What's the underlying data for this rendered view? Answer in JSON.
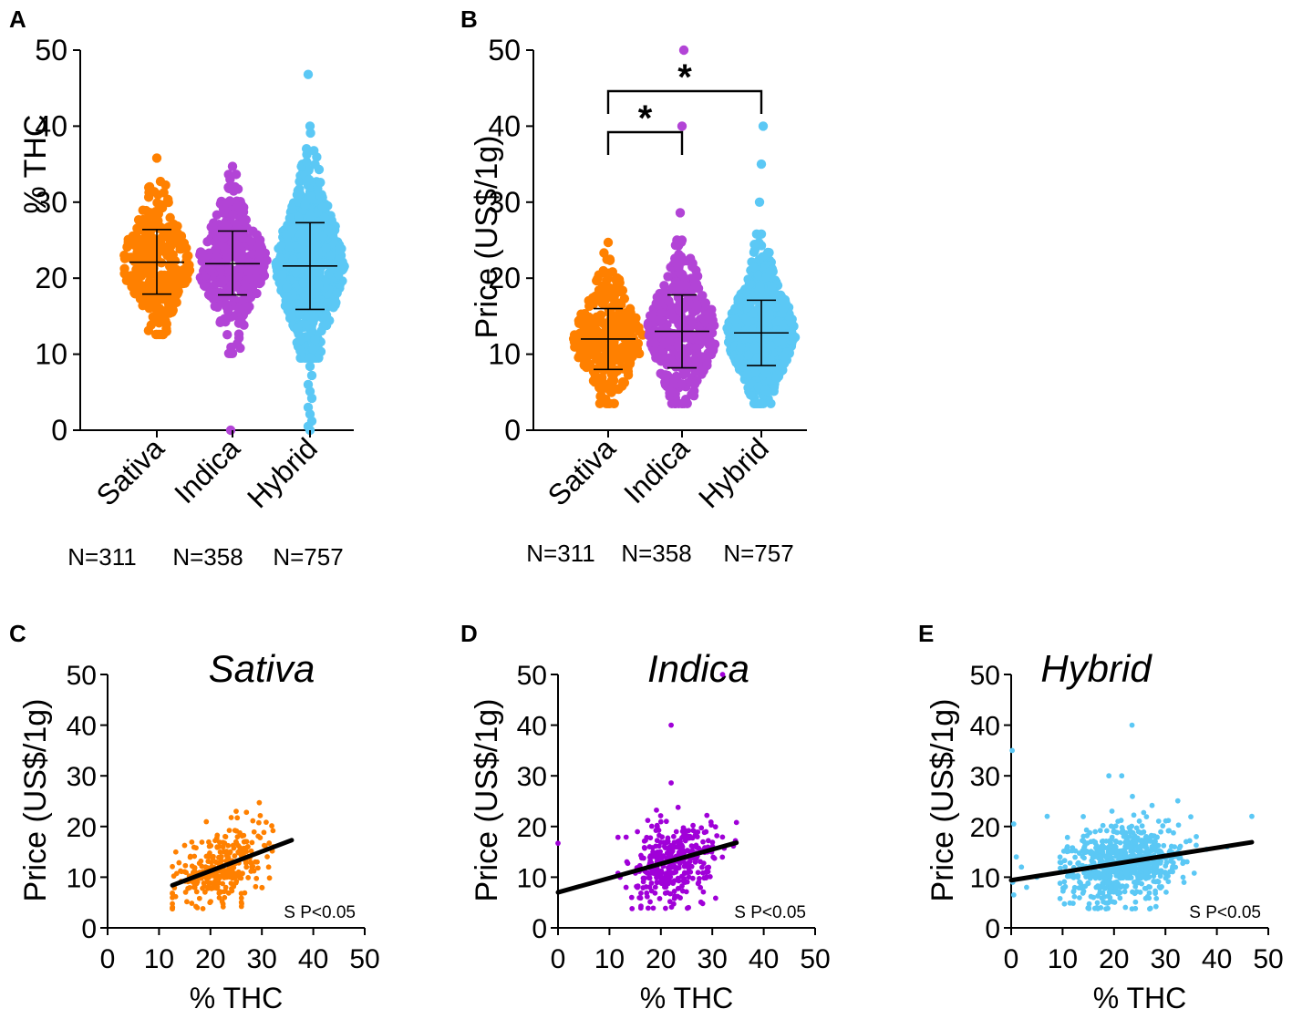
{
  "colors": {
    "Sativa": "#FF8000",
    "Indica": "#B244D6",
    "Hybrid": "#5BC8F5",
    "Indica_scatter": "#A000D8",
    "black": "#000000"
  },
  "chart_data": [
    {
      "panel": "A",
      "type": "scatter",
      "subtype": "dot-plot",
      "ylabel": "% THC",
      "ylim": [
        0,
        50
      ],
      "yticks": [
        "0",
        "10",
        "20",
        "30",
        "40",
        "50"
      ],
      "categories": [
        "Sativa",
        "Indica",
        "Hybrid"
      ],
      "counts": [
        "N=311",
        "N=358",
        "N=757"
      ],
      "groups": [
        {
          "name": "Sativa",
          "mean": 22.1,
          "sd_low": 17.9,
          "sd_high": 26.4,
          "min": 12.6,
          "max": 35.8
        },
        {
          "name": "Indica",
          "mean": 21.9,
          "sd_low": 17.8,
          "sd_high": 26.2,
          "min": 10.1,
          "max": 34.7,
          "outliers": [
            0.0
          ]
        },
        {
          "name": "Hybrid",
          "mean": 21.6,
          "sd_low": 15.9,
          "sd_high": 27.3,
          "min": 9.5,
          "max": 40.0,
          "outliers": [
            46.8,
            8.4,
            7.2,
            6.0,
            5.1,
            4.2,
            3.0,
            2.1,
            1.2,
            0.5,
            0.0
          ]
        }
      ]
    },
    {
      "panel": "B",
      "type": "scatter",
      "subtype": "dot-plot",
      "ylabel": "Price (US$/1g)",
      "ylim": [
        0,
        50
      ],
      "yticks": [
        "0",
        "10",
        "20",
        "30",
        "40",
        "50"
      ],
      "categories": [
        "Sativa",
        "Indica",
        "Hybrid"
      ],
      "counts": [
        "N=311",
        "N=358",
        "N=757"
      ],
      "significance": [
        {
          "from": "Sativa",
          "to": "Indica",
          "label": "*"
        },
        {
          "from": "Sativa",
          "to": "Hybrid",
          "label": "*"
        }
      ],
      "groups": [
        {
          "name": "Sativa",
          "mean": 12.0,
          "sd_low": 8.0,
          "sd_high": 16.0,
          "min": 3.5,
          "max": 24.7
        },
        {
          "name": "Indica",
          "mean": 13.0,
          "sd_low": 8.2,
          "sd_high": 17.8,
          "min": 3.5,
          "max": 25.0,
          "outliers": [
            28.6,
            40.0,
            50.0
          ]
        },
        {
          "name": "Hybrid",
          "mean": 12.8,
          "sd_low": 8.5,
          "sd_high": 17.1,
          "min": 3.5,
          "max": 25.8,
          "outliers": [
            30.0,
            35.0,
            40.0
          ]
        }
      ]
    },
    {
      "panel": "C",
      "type": "scatter",
      "title": "Sativa",
      "xlabel": "% THC",
      "ylabel": "Price (US$/1g)",
      "xlim": [
        0,
        50
      ],
      "ylim": [
        0,
        50
      ],
      "xticks": [
        "0",
        "10",
        "20",
        "30",
        "40",
        "50"
      ],
      "yticks": [
        "0",
        "10",
        "20",
        "30",
        "40",
        "50"
      ],
      "annotation": "S P<0.05",
      "regression": {
        "x": [
          12.6,
          35.8
        ],
        "y": [
          8.4,
          17.3
        ]
      },
      "cloud": {
        "x_mean": 22.2,
        "x_sd": 4.4,
        "x_min": 12.6,
        "x_max": 35.8,
        "y_mean": 11.9,
        "y_sd": 3.9,
        "y_min": 3.5,
        "y_max": 24.7,
        "slope": 0.38,
        "n": 311
      },
      "extra_points": [
        [
          29.5,
          24.7
        ],
        [
          25,
          23
        ],
        [
          27,
          22.8
        ]
      ]
    },
    {
      "panel": "D",
      "type": "scatter",
      "title": "Indica",
      "xlabel": "% THC",
      "ylabel": "Price (US$/1g)",
      "xlim": [
        0,
        50
      ],
      "ylim": [
        0,
        50
      ],
      "xticks": [
        "0",
        "10",
        "20",
        "30",
        "40",
        "50"
      ],
      "yticks": [
        "0",
        "10",
        "20",
        "30",
        "40",
        "50"
      ],
      "annotation": "S P<0.05",
      "regression": {
        "x": [
          0,
          34.7
        ],
        "y": [
          7.0,
          16.8
        ]
      },
      "cloud": {
        "x_mean": 22.0,
        "x_sd": 4.2,
        "x_min": 10.1,
        "x_max": 34.7,
        "y_mean": 13.0,
        "y_sd": 4.6,
        "y_min": 3.5,
        "y_max": 25.0,
        "slope": 0.28,
        "n": 358
      },
      "extra_points": [
        [
          0,
          16.7
        ],
        [
          22,
          40.0
        ],
        [
          22,
          28.6
        ],
        [
          32,
          50.0
        ],
        [
          34.5,
          17.2
        ]
      ]
    },
    {
      "panel": "E",
      "type": "scatter",
      "title": "Hybrid",
      "xlabel": "% THC",
      "ylabel": "Price (US$/1g)",
      "xlim": [
        0,
        50
      ],
      "ylim": [
        0,
        50
      ],
      "xticks": [
        "0",
        "10",
        "20",
        "30",
        "40",
        "50"
      ],
      "yticks": [
        "0",
        "10",
        "20",
        "30",
        "40",
        "50"
      ],
      "annotation": "S P<0.05",
      "regression": {
        "x": [
          0,
          46.8
        ],
        "y": [
          9.4,
          16.9
        ]
      },
      "cloud": {
        "x_mean": 21.6,
        "x_sd": 5.5,
        "x_min": 9.5,
        "x_max": 40.0,
        "y_mean": 12.8,
        "y_sd": 4.3,
        "y_min": 3.5,
        "y_max": 25.8,
        "slope": 0.16,
        "n": 757
      },
      "extra_points": [
        [
          0.2,
          35.0
        ],
        [
          23.5,
          40.0
        ],
        [
          19,
          30.0
        ],
        [
          21.5,
          30.0
        ],
        [
          0.5,
          20.5
        ],
        [
          1,
          14
        ],
        [
          0.3,
          9
        ],
        [
          0.5,
          6.5
        ],
        [
          2,
          12
        ],
        [
          3,
          8
        ],
        [
          5,
          10
        ],
        [
          7,
          22
        ],
        [
          46.8,
          22.0
        ],
        [
          38,
          15.5
        ],
        [
          42,
          16
        ],
        [
          36,
          18
        ]
      ]
    }
  ]
}
